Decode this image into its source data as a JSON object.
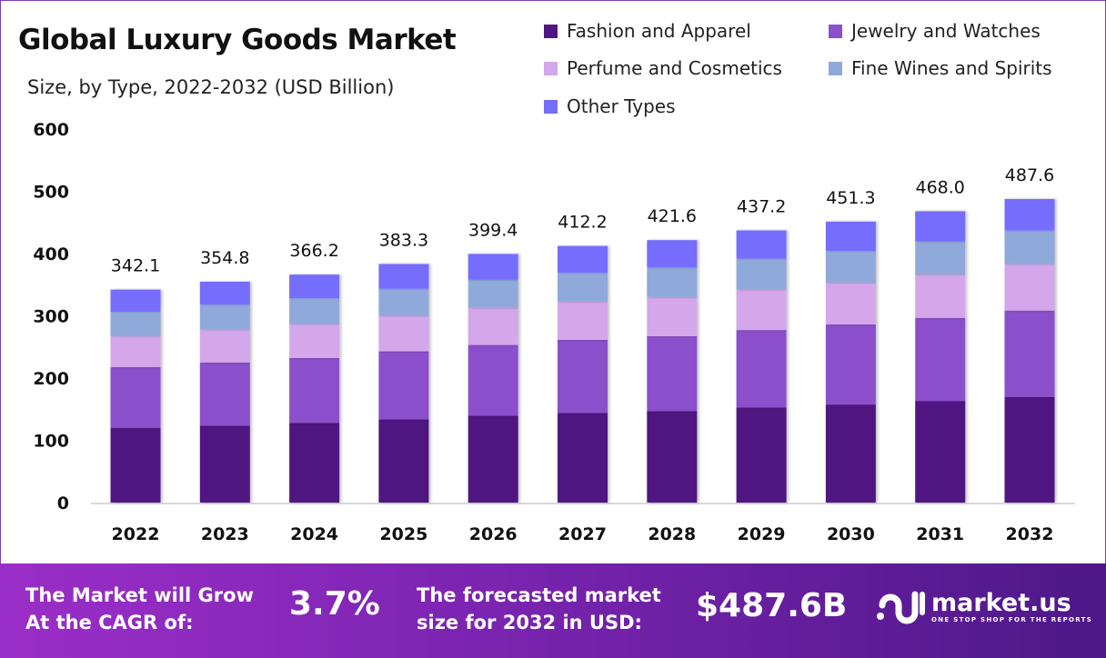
{
  "chart_data": {
    "type": "bar",
    "stacked": true,
    "title": "Global Luxury Goods Market",
    "subtitle": "Size, by Type, 2022-2032 (USD Billion)",
    "xlabel": "",
    "ylabel": "",
    "ylim": [
      0,
      600
    ],
    "yticks": [
      0,
      100,
      200,
      300,
      400,
      500,
      600
    ],
    "grid": false,
    "legend_position": "top-right",
    "categories": [
      "2022",
      "2023",
      "2024",
      "2025",
      "2026",
      "2027",
      "2028",
      "2029",
      "2030",
      "2031",
      "2032"
    ],
    "totals": [
      "342.1",
      "354.8",
      "366.2",
      "383.3",
      "399.4",
      "412.2",
      "421.6",
      "437.2",
      "451.3",
      "468.0",
      "487.6"
    ],
    "series": [
      {
        "name": "Fashion and Apparel",
        "color": "#4f1681",
        "values": [
          119.7,
          123.8,
          127.8,
          133.8,
          139.4,
          143.9,
          147.1,
          152.6,
          157.5,
          163.3,
          169.8
        ]
      },
      {
        "name": "Jewelry and Watches",
        "color": "#8b50cc",
        "values": [
          97.8,
          101.1,
          104.4,
          109.2,
          113.8,
          117.5,
          120.2,
          124.6,
          128.6,
          133.4,
          138.7
        ]
      },
      {
        "name": "Perfume and Cosmetics",
        "color": "#d3a7ea",
        "values": [
          49.6,
          52.9,
          54.6,
          57.1,
          59.5,
          61.4,
          62.8,
          65.1,
          67.2,
          69.7,
          74.5
        ]
      },
      {
        "name": "Fine Wines and Spirits",
        "color": "#8fa9db",
        "values": [
          39.4,
          40.1,
          41.4,
          43.3,
          45.1,
          46.6,
          47.6,
          49.4,
          51.0,
          52.9,
          54.0
        ]
      },
      {
        "name": "Other Types",
        "color": "#766dfd",
        "values": [
          35.6,
          36.9,
          38.0,
          39.9,
          41.6,
          42.8,
          43.9,
          45.5,
          47.0,
          48.7,
          50.6
        ]
      }
    ]
  },
  "footer": {
    "cagr_label_line1": "The Market will Grow",
    "cagr_label_line2": "At the CAGR of:",
    "cagr_value": "3.7%",
    "forecast_label_line1": "The forecasted market",
    "forecast_label_line2": "size for 2032 in USD:",
    "forecast_value": "$487.6B",
    "brand_name": "market.us",
    "brand_tagline": "ONE STOP SHOP FOR THE REPORTS"
  }
}
